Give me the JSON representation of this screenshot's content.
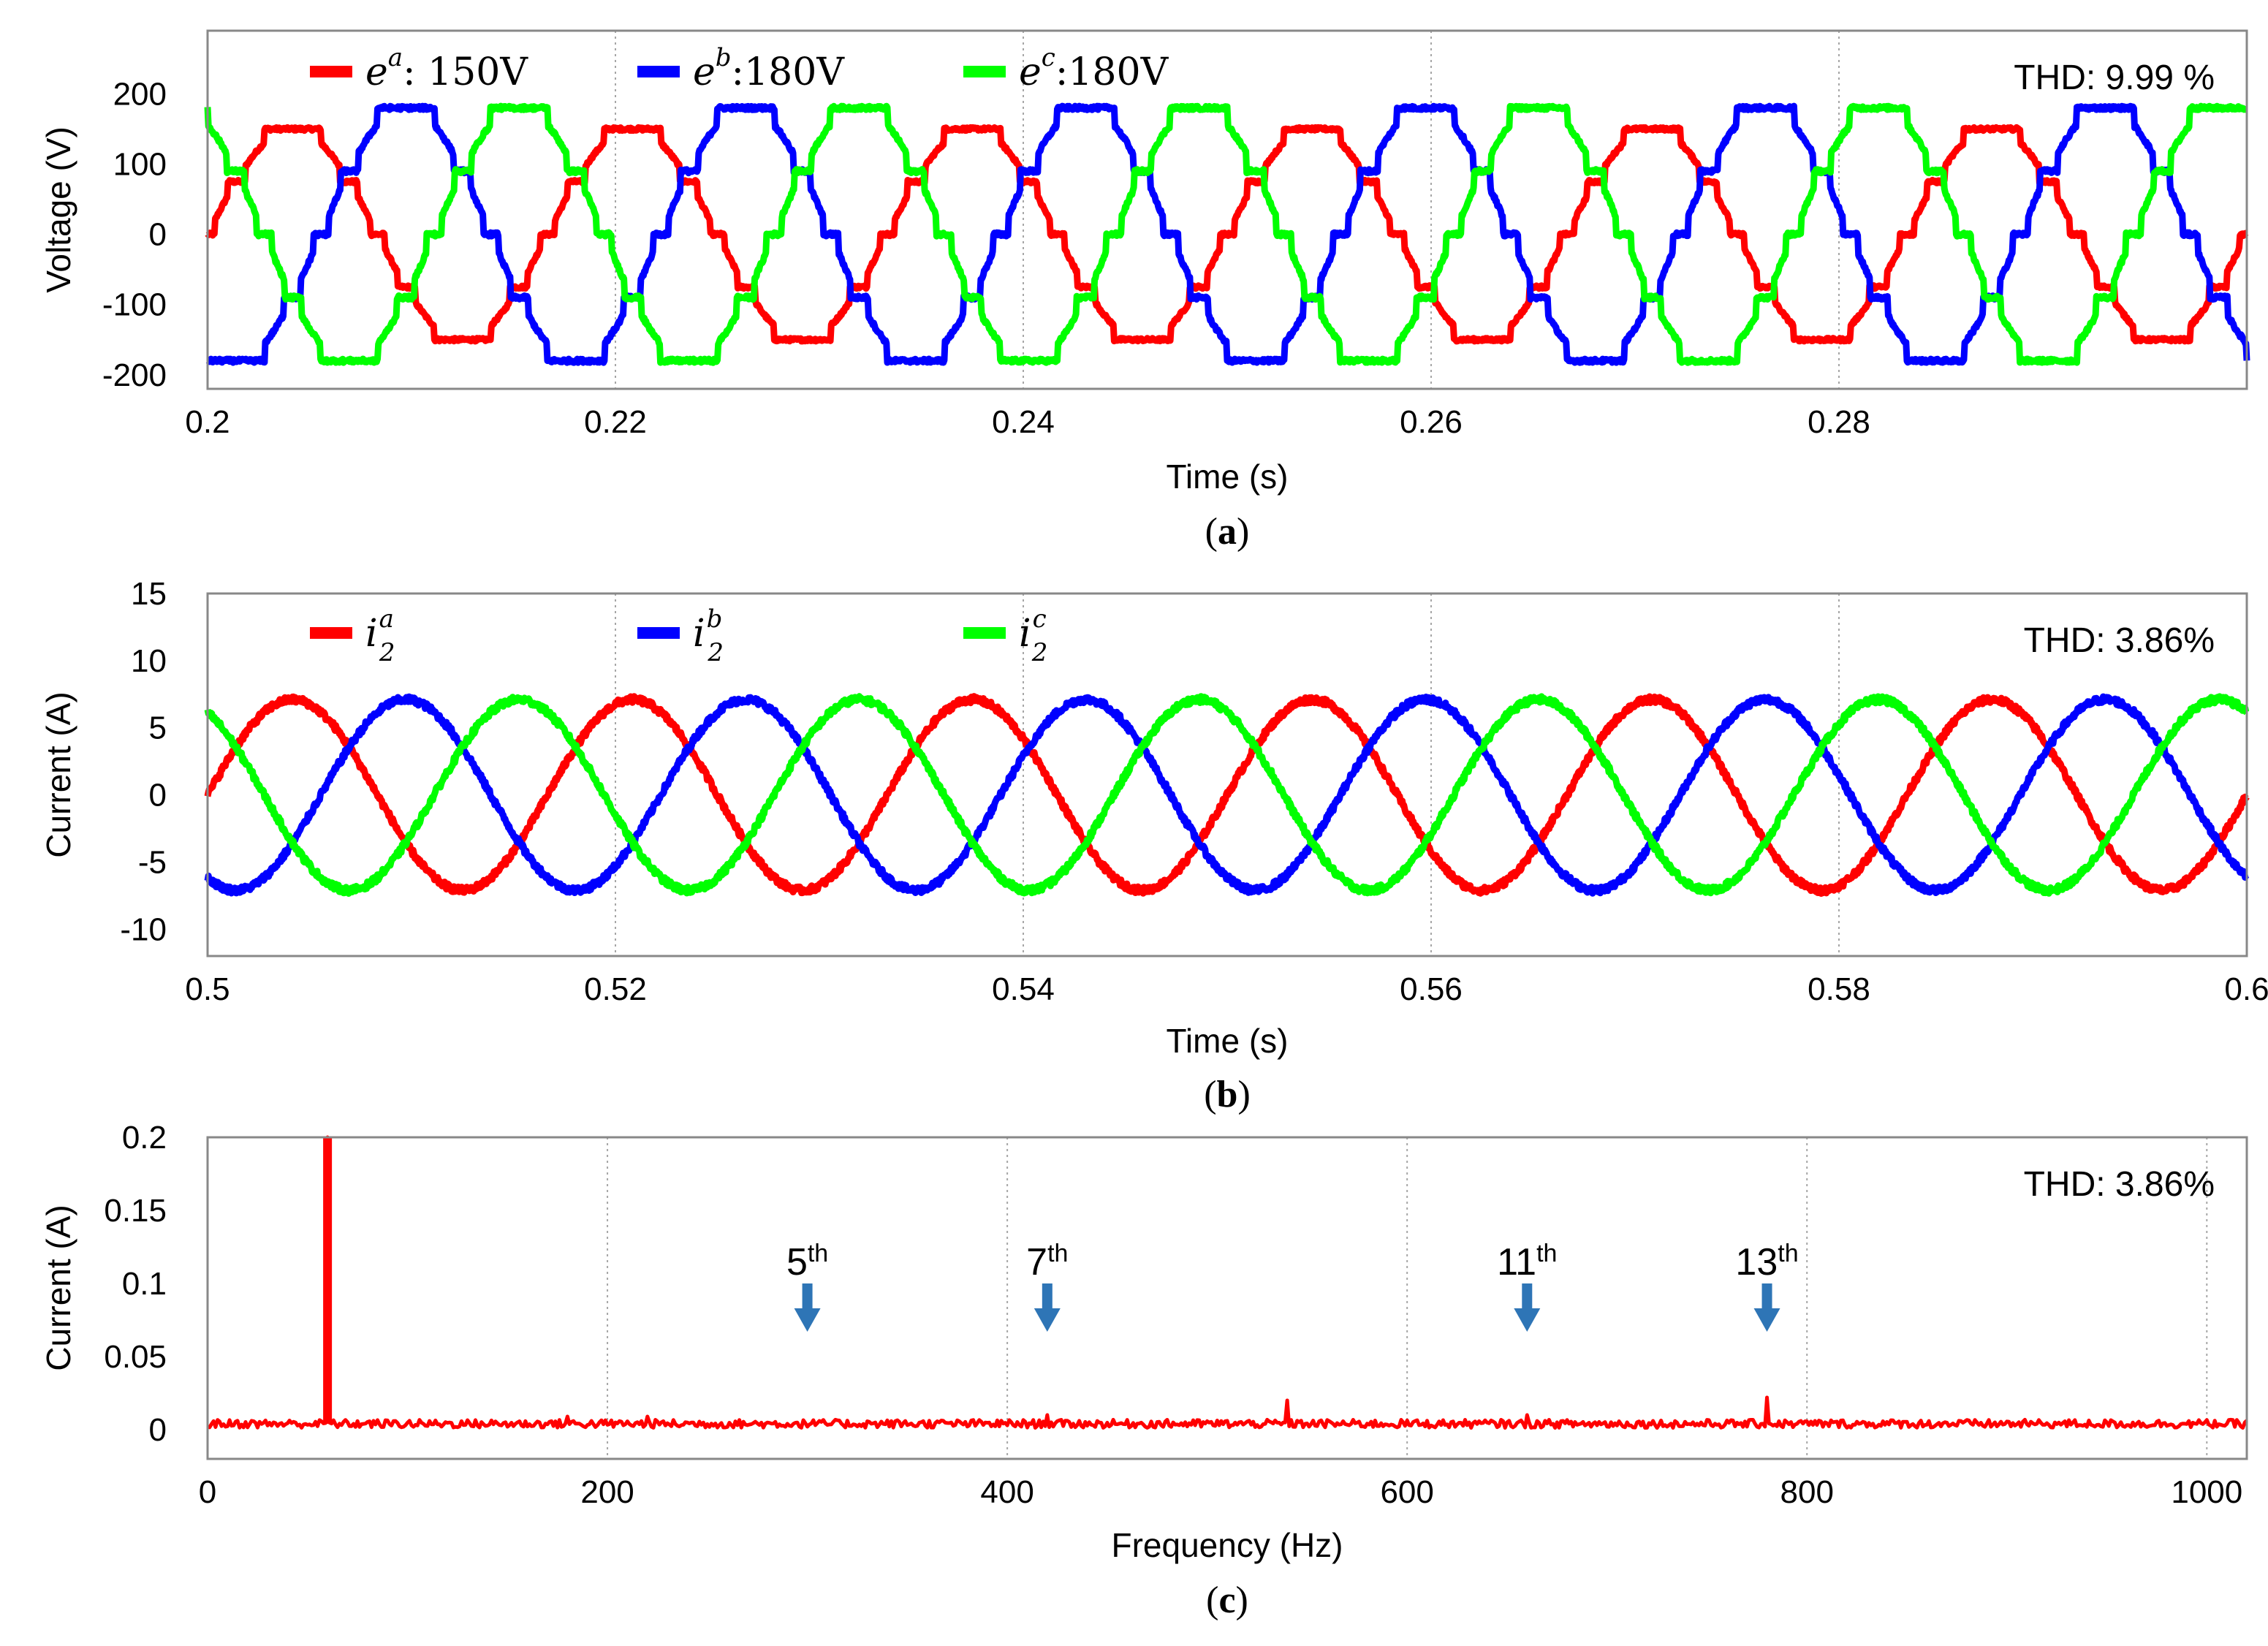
{
  "colors": {
    "a": "#ff0000",
    "b": "#0000ff",
    "c": "#00ff00",
    "arrow": "#2e75b6"
  },
  "chart_data": [
    {
      "id": "panel-a",
      "type": "line",
      "caption": {
        "open": "(",
        "letter": "a",
        "close": ")"
      },
      "xlabel": "Time (s)",
      "ylabel": "Voltage (V)",
      "xlim": [
        0.2,
        0.3
      ],
      "ylim": [
        -220,
        290
      ],
      "xticks": [
        0.2,
        0.22,
        0.24,
        0.26,
        0.28
      ],
      "xtick_labels": [
        "0.2",
        "0.22",
        "0.24",
        "0.26",
        "0.28"
      ],
      "yticks": [
        200,
        100,
        0,
        -100,
        -200
      ],
      "ytick_labels": [
        "200",
        "100",
        "0",
        "-100",
        "-200"
      ],
      "thd": "THD: 9.99 %",
      "waveform": "stepped",
      "frequency_hz": 60,
      "series": [
        {
          "name": "e^a: 150V",
          "base": "e",
          "sup": "a",
          "suffix": ": 150V",
          "color_key": "a",
          "amplitude": 150,
          "phase_deg": 0
        },
        {
          "name": "e^b:180V",
          "base": "e",
          "sup": "b",
          "suffix": ":180V",
          "color_key": "b",
          "amplitude": 180,
          "phase_deg": -120
        },
        {
          "name": "e^c:180V",
          "base": "e",
          "sup": "c",
          "suffix": ":180V",
          "color_key": "c",
          "amplitude": 180,
          "phase_deg": 120
        }
      ]
    },
    {
      "id": "panel-b",
      "type": "line",
      "caption": {
        "open": "(",
        "letter": "b",
        "close": ")"
      },
      "xlabel": "Time (s)",
      "ylabel": "Current (A)",
      "xlim": [
        0.5,
        0.6
      ],
      "ylim": [
        -12,
        15
      ],
      "xticks": [
        0.5,
        0.52,
        0.54,
        0.56,
        0.58,
        0.6
      ],
      "xtick_labels": [
        "0.5",
        "0.52",
        "0.54",
        "0.56",
        "0.58",
        "0.6"
      ],
      "yticks": [
        15,
        10,
        5,
        0,
        -5,
        -10
      ],
      "ytick_labels": [
        "15",
        "10",
        "5",
        "0",
        "-5",
        "-10"
      ],
      "thd": "THD: 3.86%",
      "waveform": "sine",
      "frequency_hz": 60,
      "series": [
        {
          "name": "i_2^a",
          "base": "i",
          "sub": "2",
          "sup": "a",
          "color_key": "a",
          "amplitude": 7.1,
          "phase_deg": 0
        },
        {
          "name": "i_2^b",
          "base": "i",
          "sub": "2",
          "sup": "b",
          "color_key": "b",
          "amplitude": 7.1,
          "phase_deg": -120
        },
        {
          "name": "i_2^c",
          "base": "i",
          "sub": "2",
          "sup": "c",
          "color_key": "c",
          "amplitude": 7.1,
          "phase_deg": 120
        }
      ]
    },
    {
      "id": "panel-c",
      "type": "bar",
      "caption": {
        "open": "(",
        "letter": "c",
        "close": ")"
      },
      "xlabel": "Frequency (Hz)",
      "ylabel": "Current (A)",
      "xlim": [
        0,
        1020
      ],
      "ylim": [
        -0.02,
        0.2
      ],
      "xticks": [
        0,
        200,
        400,
        600,
        800,
        1000
      ],
      "xtick_labels": [
        "0",
        "200",
        "400",
        "600",
        "800",
        "1000"
      ],
      "yticks": [
        0.2,
        0.15,
        0.1,
        0.05,
        0
      ],
      "ytick_labels": [
        "0.2",
        "0.15",
        "0.1",
        "0.05",
        "0"
      ],
      "thd": "THD: 3.86%",
      "noise_floor": 0.004,
      "spikes": [
        {
          "freq": 60,
          "value": 0.2
        },
        {
          "freq": 540,
          "value": 0.02
        },
        {
          "freq": 780,
          "value": 0.022
        },
        {
          "freq": 420,
          "value": 0.01
        },
        {
          "freq": 660,
          "value": 0.01
        },
        {
          "freq": 180,
          "value": 0.009
        },
        {
          "freq": 220,
          "value": 0.009
        }
      ],
      "harmonic_markers": [
        {
          "freq": 300,
          "num": "5",
          "sup": "th"
        },
        {
          "freq": 420,
          "num": "7",
          "sup": "th"
        },
        {
          "freq": 660,
          "num": "11",
          "sup": "th"
        },
        {
          "freq": 780,
          "num": "13",
          "sup": "th"
        }
      ]
    }
  ]
}
